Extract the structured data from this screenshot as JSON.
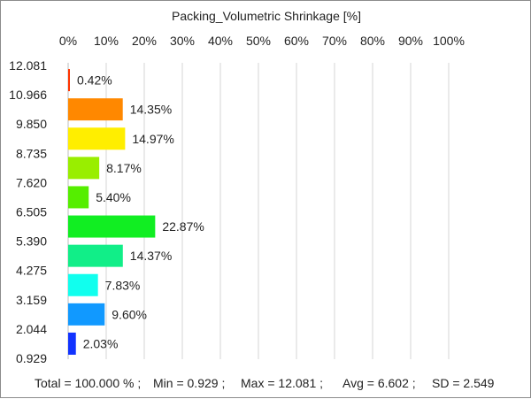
{
  "chart_data": {
    "type": "bar",
    "orientation": "horizontal",
    "title": "Packing_Volumetric Shrinkage [%]",
    "x_ticks": [
      "0%",
      "10%",
      "20%",
      "30%",
      "40%",
      "50%",
      "60%",
      "70%",
      "80%",
      "90%",
      "100%"
    ],
    "xlim": [
      0,
      100
    ],
    "grid": true,
    "y_ticks": [
      "12.081",
      "10.966",
      "9.850",
      "8.735",
      "7.620",
      "6.505",
      "5.390",
      "4.275",
      "3.159",
      "2.044",
      "0.929"
    ],
    "values": [
      0.42,
      14.35,
      14.97,
      8.17,
      5.4,
      22.87,
      14.37,
      7.83,
      9.6,
      2.03
    ],
    "value_labels": [
      "0.42%",
      "14.35%",
      "14.97%",
      "8.17%",
      "5.40%",
      "22.87%",
      "14.37%",
      "7.83%",
      "9.60%",
      "2.03%"
    ],
    "colors": [
      "#ff3300",
      "#ff8800",
      "#ffee00",
      "#99ee00",
      "#55ee00",
      "#11ee22",
      "#11ee88",
      "#11ffee",
      "#1199ff",
      "#1133ff"
    ]
  },
  "stats": {
    "total": "Total = 100.000 % ;",
    "min": "Min = 0.929 ;",
    "max": "Max = 12.081 ;",
    "avg": "Avg = 6.602 ;",
    "sd": "SD = 2.549"
  }
}
